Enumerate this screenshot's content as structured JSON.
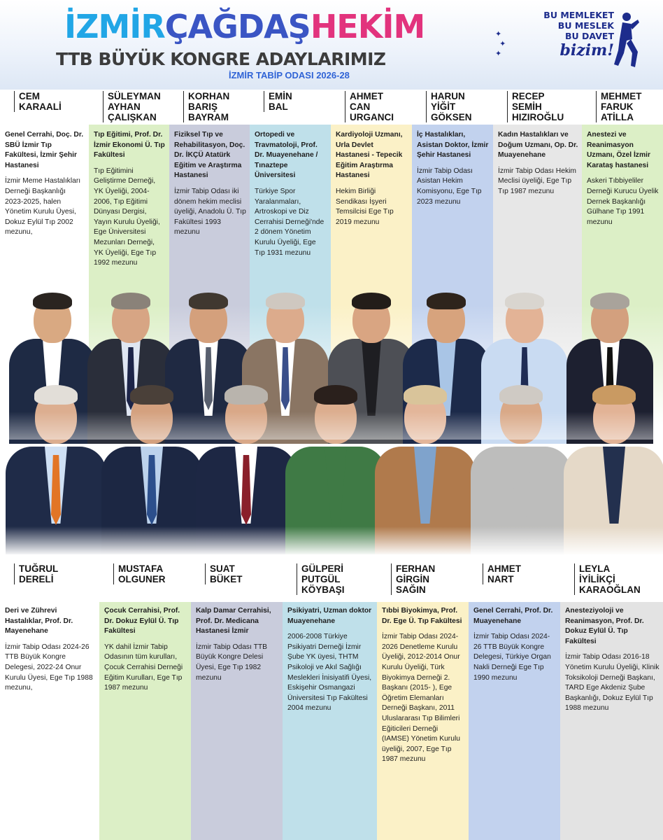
{
  "header": {
    "brand_part1": "İZMİR",
    "brand_part2": "ÇAĞDAŞ",
    "brand_part3": "HEKİM",
    "subtitle": "TTB BÜYÜK KONGRE ADAYLARIMIZ",
    "subline": "İZMİR TABİP ODASI 2026-28",
    "slogan_lines": [
      "BU MEMLEKET",
      "BU MESLEK",
      "BU DAVET",
      "bizim!"
    ]
  },
  "top_candidates": [
    {
      "name_lines": [
        "CEM",
        "KARAALİ"
      ],
      "title": "Genel Cerrahi, Doç. Dr. SBÜ İzmir Tıp Fakültesi, İzmir Şehir Hastanesi",
      "bio": "İzmir Meme Hastalıkları Derneği Başkanlığı 2023-2025, halen Yönetim Kurulu Üyesi, Dokuz Eylül Tıp 2002 mezunu,",
      "color": "#ffffff"
    },
    {
      "name_lines": [
        "SÜLEYMAN",
        "AYHAN",
        "ÇALIŞKAN"
      ],
      "title": "Tıp Eğitimi, Prof. Dr. İzmir Ekonomi Ü. Tıp Fakültesi",
      "bio": "Tıp Eğitimini Geliştirme Derneği, YK Üyeliği, 2004-2006, Tıp Eğitimi Dünyası Dergisi, Yayın Kurulu Üyeliği, Ege Üniversitesi Mezunları Derneği, YK Üyeliği, Ege Tıp 1992 mezunu",
      "color": "#dcefc6"
    },
    {
      "name_lines": [
        "KORHAN",
        "BARIŞ",
        "BAYRAM"
      ],
      "title": "Fiziksel Tıp ve Rehabilitasyon, Doç. Dr. İKÇÜ Atatürk Eğitim ve Araştırma Hastanesi",
      "bio": "İzmir Tabip Odası iki dönem hekim meclisi üyeliği, Anadolu Ü. Tıp Fakültesi 1993 mezunu",
      "color": "#c9ccdc"
    },
    {
      "name_lines": [
        "EMİN",
        "BAL"
      ],
      "title": "Ortopedi ve Travmatoloji, Prof. Dr. Muayenehane / Tınaztepe Üniversitesi",
      "bio": "Türkiye Spor Yaralanmaları, Artroskopi ve Diz Cerrahisi Derneği'nde 2 dönem Yönetim Kurulu Üyeliği, Ege Tıp 1931 mezunu",
      "color": "#bfe0ea"
    },
    {
      "name_lines": [
        "AHMET CAN",
        "URGANCI"
      ],
      "title": "Kardiyoloji Uzmanı, Urla Devlet Hastanesi - Tepecik Eğitim Araştırma Hastanesi",
      "bio": "Hekim Birliği Sendikası İşyeri Temsilcisi Ege Tıp 2019 mezunu",
      "color": "#fbf1c7"
    },
    {
      "name_lines": [
        "HARUN YİĞİT",
        "GÖKSEN"
      ],
      "title": "İç Hastalıkları, Asistan Doktor, İzmir Şehir Hastanesi",
      "bio": "İzmir Tabip Odası Asistan Hekim Komisyonu, Ege Tıp 2023 mezunu",
      "color": "#c2d2ee"
    },
    {
      "name_lines": [
        "RECEP SEMİH",
        "HIZIROĞLU"
      ],
      "title": "Kadın Hastalıkları ve Doğum Uzmanı, Op. Dr. Muayenehane",
      "bio": "İzmir Tabip Odası Hekim Meclisi üyeliği, Ege Tıp Tıp 1987 mezunu",
      "color": "#e7e7e7"
    },
    {
      "name_lines": [
        "MEHMET",
        "FARUK",
        "ATİLLA"
      ],
      "title": "Anestezi ve Reanimasyon Uzmanı, Özel İzmir Karataş hastanesi",
      "bio": "Askeri Tıbbiyeliler Derneği Kurucu Üyelik Dernek Başkanlığı Gülhane Tıp 1991 mezunu",
      "color": "#dcefc6"
    }
  ],
  "bottom_candidates": [
    {
      "name_lines": [
        "TUĞRUL",
        "DERELİ"
      ],
      "title": "Deri ve Zührevi Hastalıklar, Prof. Dr. Mayenehane",
      "bio": "İzmir Tabip Odası 2024-26 TTB Büyük Kongre Delegesi, 2022-24 Onur Kurulu Üyesi, Ege Tıp 1988 mezunu,",
      "color": "#ffffff"
    },
    {
      "name_lines": [
        "MUSTAFA",
        "OLGUNER"
      ],
      "title": "Çocuk Cerrahisi, Prof. Dr. Dokuz Eylül Ü. Tıp Fakültesi",
      "bio": "YK dahil İzmir Tabip Odasının tüm kurulları, Çocuk Cerrahisi Derneği Eğitim Kurulları, Ege Tıp 1987 mezunu",
      "color": "#dcefc6"
    },
    {
      "name_lines": [
        "SUAT",
        "BÜKET"
      ],
      "title": "Kalp Damar Cerrahisi, Prof. Dr. Medicana Hastanesi İzmir",
      "bio": "İzmir Tabip Odası TTB Büyük Kongre Delesi Üyesi, Ege Tıp 1982 mezunu",
      "color": "#c9ccdc"
    },
    {
      "name_lines": [
        "GÜLPERİ",
        "PUTGÜL",
        "KÖYBAŞI"
      ],
      "title": "Psikiyatri, Uzman doktor Muayenehane",
      "bio": "2006-2008 Türkiye Psikiyatri Derneği İzmir Şube YK üyesi, THTM Psikoloji ve Akıl Sağlığı Meslekleri İnisiyatifi Üyesi, Eskişehir Osmangazi Üniversitesi Tıp Fakültesi 2004 mezunu",
      "color": "#bfe0ea"
    },
    {
      "name_lines": [
        "FERHAN",
        "GİRGİN",
        "SAĞIN"
      ],
      "title": "Tıbbi Biyokimya, Prof. Dr. Ege Ü. Tıp Fakültesi",
      "bio": "İzmir Tabip Odası 2024-2026 Denetleme Kurulu Üyeliği, 2012-2014 Onur Kurulu Üyeliği, Türk Biyokimya Derneği 2. Başkanı (2015- ), Ege Öğretim Elemanları Derneği Başkanı, 2011 Uluslararası Tıp Bilimleri Eğiticileri Derneği (IAMSE) Yönetim Kurulu üyeliği, 2007, Ege Tıp 1987 mezunu",
      "color": "#fbf1c7"
    },
    {
      "name_lines": [
        "AHMET",
        "NART"
      ],
      "title": "Genel Cerrahi, Prof. Dr. Muayenehane",
      "bio": "İzmir Tabip Odası 2024-26 TTB Büyük Kongre Delegesi, Türkiye Organ Nakli Derneği Ege Tıp 1990 mezunu",
      "color": "#c2d2ee"
    },
    {
      "name_lines": [
        "LEYLA",
        "İYİLİKÇİ",
        "KARAOĞLAN"
      ],
      "title": "Anesteziyoloji ve Reanimasyon, Prof. Dr. Dokuz Eylül Ü. Tıp Fakültesi",
      "bio": "İzmir Tabip Odası 2016-18 Yönetim Kurulu Üyeliği, Klinik Toksikoloji Derneği Başkanı, TARD Ege Akdeniz Şube Başkanlığı, Dokuz Eylül Tıp 1988 mezunu",
      "color": "#e3e3e3"
    }
  ]
}
